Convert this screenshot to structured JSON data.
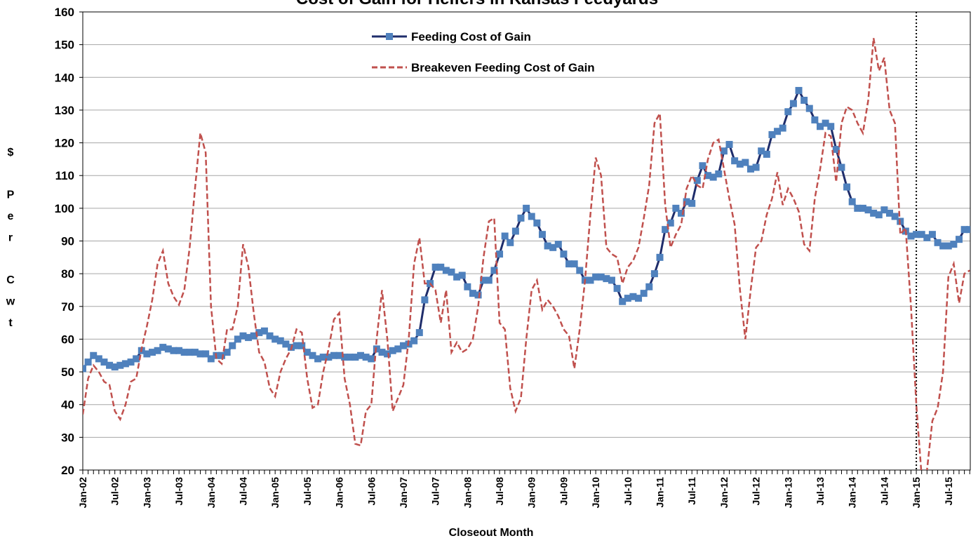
{
  "chart_data": {
    "type": "line",
    "title": "Cost of Gain for Heifers in Kansas Feedyards",
    "x_label": "Closeout Month",
    "y_label": "$ Per Cwt",
    "categories": [
      "Jan-02",
      null,
      null,
      null,
      null,
      null,
      "Jul-02",
      null,
      null,
      null,
      null,
      null,
      "Jan-03",
      null,
      null,
      null,
      null,
      null,
      "Jul-03",
      null,
      null,
      null,
      null,
      null,
      "Jan-04",
      null,
      null,
      null,
      null,
      null,
      "Jul-04",
      null,
      null,
      null,
      null,
      null,
      "Jan-05",
      null,
      null,
      null,
      null,
      null,
      "Jul-05",
      null,
      null,
      null,
      null,
      null,
      "Jan-06",
      null,
      null,
      null,
      null,
      null,
      "Jul-06",
      null,
      null,
      null,
      null,
      null,
      "Jan-07",
      null,
      null,
      null,
      null,
      null,
      "Jul-07",
      null,
      null,
      null,
      null,
      null,
      "Jan-08",
      null,
      null,
      null,
      null,
      null,
      "Jul-08",
      null,
      null,
      null,
      null,
      null,
      "Jan-09",
      null,
      null,
      null,
      null,
      null,
      "Jul-09",
      null,
      null,
      null,
      null,
      null,
      "Jan-10",
      null,
      null,
      null,
      null,
      null,
      "Jul-10",
      null,
      null,
      null,
      null,
      null,
      "Jan-11",
      null,
      null,
      null,
      null,
      null,
      "Jul-11",
      null,
      null,
      null,
      null,
      null,
      "Jan-12",
      null,
      null,
      null,
      null,
      null,
      "Jul-12",
      null,
      null,
      null,
      null,
      null,
      "Jan-13",
      null,
      null,
      null,
      null,
      null,
      "Jul-13",
      null,
      null,
      null,
      null,
      null,
      "Jan-14",
      null,
      null,
      null,
      null,
      null,
      "Jul-14",
      null,
      null,
      null,
      null,
      null,
      "Jan-15",
      null,
      null,
      null,
      null,
      null,
      "Jul-15",
      null,
      null,
      null,
      null
    ],
    "series": [
      {
        "name": "Feeding Cost of Gain",
        "color": "#1f2d6b",
        "marker_color": "#4f81bd",
        "style": "solid",
        "marker": "square",
        "values": [
          51,
          53,
          55,
          54,
          53,
          52,
          51.5,
          52,
          52.5,
          53,
          54,
          56.5,
          55.5,
          56,
          56.5,
          57.5,
          57,
          56.5,
          56.5,
          56,
          56,
          56,
          55.5,
          55.5,
          54,
          55,
          55,
          56,
          58,
          60,
          61,
          60.5,
          61,
          62,
          62.5,
          61,
          60,
          59.5,
          58.5,
          57.5,
          58,
          58,
          56,
          55,
          54,
          54.5,
          54.5,
          55,
          55,
          54.5,
          54.5,
          54.5,
          55,
          54.5,
          54,
          57,
          56,
          55.5,
          56.5,
          57,
          58,
          58.5,
          59.5,
          62,
          72,
          77,
          82,
          82,
          81,
          80.5,
          79,
          79.5,
          76,
          74,
          73.5,
          78,
          78,
          81,
          86,
          91.5,
          89.5,
          93,
          97,
          100,
          97.5,
          95.5,
          92,
          88.5,
          88,
          89,
          86,
          83,
          83,
          81,
          78,
          78,
          79,
          79,
          78.5,
          78,
          75.5,
          71.5,
          72.5,
          73,
          72.5,
          74,
          76,
          80,
          85,
          93.5,
          95.5,
          100,
          98.5,
          102,
          101.5,
          108.5,
          113,
          110,
          109.5,
          110.5,
          117.5,
          119.5,
          114.5,
          113.5,
          114,
          112,
          112.5,
          117.5,
          116.5,
          122.5,
          123.5,
          124.5,
          129.5,
          132,
          136,
          133,
          130.5,
          127,
          125,
          126,
          125,
          118,
          112.5,
          106.5,
          102,
          100,
          100,
          99.5,
          98.5,
          98,
          99.5,
          98.5,
          97.5,
          96,
          93,
          91.5,
          92,
          92,
          91,
          92,
          89.5,
          88.5,
          88.5,
          89,
          90.5,
          93.5,
          93.5
        ]
      },
      {
        "name": "Breakeven Feeding Cost of Gain",
        "color": "#c0504d",
        "style": "dashed",
        "values": [
          37,
          48,
          52,
          50,
          47,
          46,
          38,
          35.5,
          40,
          47,
          48,
          57,
          64,
          72,
          83,
          87,
          77,
          73,
          70.5,
          75,
          88,
          106,
          123,
          117,
          70,
          54,
          52.5,
          63,
          63,
          70,
          89,
          82,
          68,
          56,
          53,
          45,
          42.5,
          50,
          54,
          57,
          63,
          62,
          48,
          39,
          40,
          50,
          57,
          66,
          68,
          48,
          40,
          28,
          27.5,
          38,
          40,
          60,
          75,
          60,
          38,
          42,
          46,
          60,
          83,
          91,
          77,
          77,
          75,
          65,
          75,
          56,
          59,
          56,
          57,
          60,
          70,
          85,
          96,
          97,
          65,
          63,
          45,
          38,
          42,
          60,
          75,
          78,
          69,
          72,
          70,
          67,
          63,
          61,
          51,
          63,
          78,
          98,
          115.5,
          110,
          88,
          86,
          85,
          77,
          82,
          84,
          88,
          97,
          107,
          126,
          129,
          101,
          88,
          92,
          95,
          106,
          110,
          107,
          106,
          115,
          120,
          121,
          112,
          103,
          95,
          75,
          60,
          75,
          88,
          90,
          98,
          103,
          111,
          101,
          106,
          103,
          99,
          89,
          87,
          103,
          112,
          123,
          122,
          108,
          126,
          131,
          130,
          126,
          123,
          133,
          152,
          142,
          146,
          130,
          126,
          92,
          94,
          70,
          40,
          18,
          20,
          35,
          39,
          50,
          79,
          83,
          71,
          80,
          81
        ]
      }
    ],
    "ylim": [
      20,
      160
    ],
    "yticks": [
      20,
      30,
      40,
      50,
      60,
      70,
      80,
      90,
      100,
      110,
      120,
      130,
      140,
      150,
      160
    ],
    "grid": true,
    "legend": "top-center",
    "reference_line": "Jan-15"
  }
}
